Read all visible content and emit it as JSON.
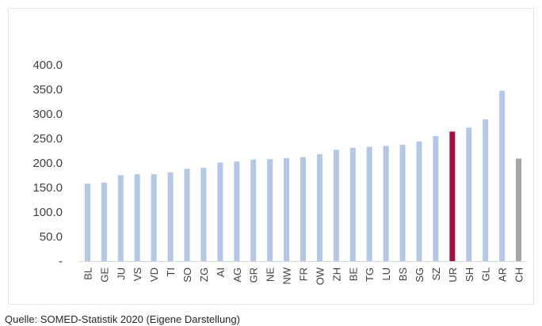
{
  "source_note": "Quelle: SOMED-Statistik 2020 (Eigene Darstellung)",
  "colors": {
    "default_bar": "#b4c7e7",
    "highlight_bar": "#a50f3a",
    "total_bar": "#a6a6a6",
    "tick_text": "#404040"
  },
  "chart_data": {
    "type": "bar",
    "categories": [
      "BL",
      "GE",
      "JU",
      "VS",
      "VD",
      "TI",
      "SO",
      "ZG",
      "AI",
      "AG",
      "GR",
      "NE",
      "NW",
      "FR",
      "OW",
      "ZH",
      "BE",
      "TG",
      "LU",
      "BS",
      "SG",
      "SZ",
      "UR",
      "SH",
      "GL",
      "AR",
      "CH"
    ],
    "values": [
      158,
      160,
      175,
      177,
      177,
      181,
      188,
      190,
      201,
      203,
      207,
      208,
      210,
      212,
      218,
      227,
      231,
      233,
      235,
      237,
      244,
      255,
      264,
      272,
      289,
      347,
      209
    ],
    "highlight": {
      "UR": "highlight_bar",
      "CH": "total_bar"
    },
    "y_ticks": [
      "-",
      "50.0",
      "100.0",
      "150.0",
      "200.0",
      "250.0",
      "300.0",
      "350.0",
      "400.0"
    ],
    "y_tick_values": [
      0,
      50,
      100,
      150,
      200,
      250,
      300,
      350,
      400
    ],
    "ylim": [
      0,
      400
    ],
    "title": "",
    "xlabel": "",
    "ylabel": "",
    "grid": false,
    "legend": "none"
  }
}
